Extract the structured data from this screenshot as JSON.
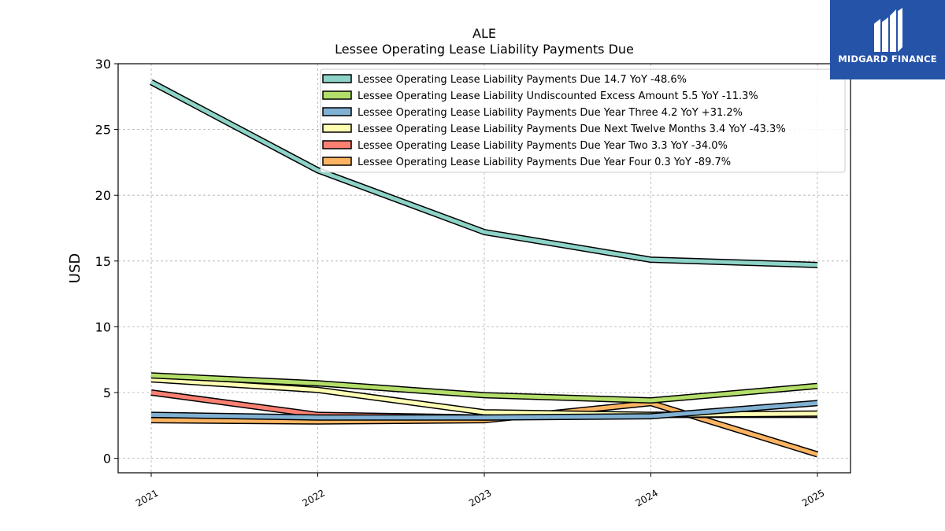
{
  "chart_data": {
    "type": "line",
    "title": "ALE",
    "subtitle": "Lessee Operating Lease Liability Payments Due",
    "ylabel": "USD",
    "xlabel": "",
    "categories": [
      "2021",
      "2022",
      "2023",
      "2024",
      "2025"
    ],
    "ylim": [
      -1.1,
      30
    ],
    "yticks": [
      0,
      5,
      10,
      15,
      20,
      25,
      30
    ],
    "grid": true,
    "legend_position": "top-right",
    "series": [
      {
        "name": "Lessee Operating Lease Liability Payments Due",
        "legend": "Lessee Operating Lease Liability Payments Due  14.7 YoY -48.6%",
        "color": "#8dd3c7",
        "values": [
          28.6,
          21.9,
          17.2,
          15.1,
          14.7
        ]
      },
      {
        "name": "Lessee Operating Lease Liability Undiscounted Excess Amount",
        "legend": "Lessee Operating Lease Liability Undiscounted Excess Amount  5.5 YoY -11.3%",
        "color": "#b3de69",
        "values": [
          6.3,
          5.7,
          4.8,
          4.4,
          5.5
        ]
      },
      {
        "name": "Lessee Operating Lease Liability Payments Due Year Three",
        "legend": "Lessee Operating Lease Liability Payments Due Year Three  4.2 YoY +31.2%",
        "color": "#80b1d3",
        "values": [
          3.3,
          3.1,
          3.1,
          3.2,
          4.2
        ]
      },
      {
        "name": "Lessee Operating Lease Liability Payments Due Next Twelve Months",
        "legend": "Lessee Operating Lease Liability Payments Due Next Twelve Months  3.4 YoY -43.3%",
        "color": "#ffffb3",
        "values": [
          6.0,
          5.2,
          3.5,
          3.3,
          3.4
        ]
      },
      {
        "name": "Lessee Operating Lease Liability Payments Due Year Two",
        "legend": "Lessee Operating Lease Liability Payments Due Year Two  3.3 YoY -34.0%",
        "color": "#fb8072",
        "values": [
          5.0,
          3.3,
          3.1,
          3.3,
          3.3
        ]
      },
      {
        "name": "Lessee Operating Lease Liability Payments Due Year Four",
        "legend": "Lessee Operating Lease Liability Payments Due Year Four  0.3 YoY -89.7%",
        "color": "#fdb462",
        "values": [
          2.9,
          2.8,
          2.9,
          4.2,
          0.3
        ]
      }
    ]
  },
  "logo": {
    "text": "MIDGARD FINANCE",
    "color": "#2553a8"
  }
}
